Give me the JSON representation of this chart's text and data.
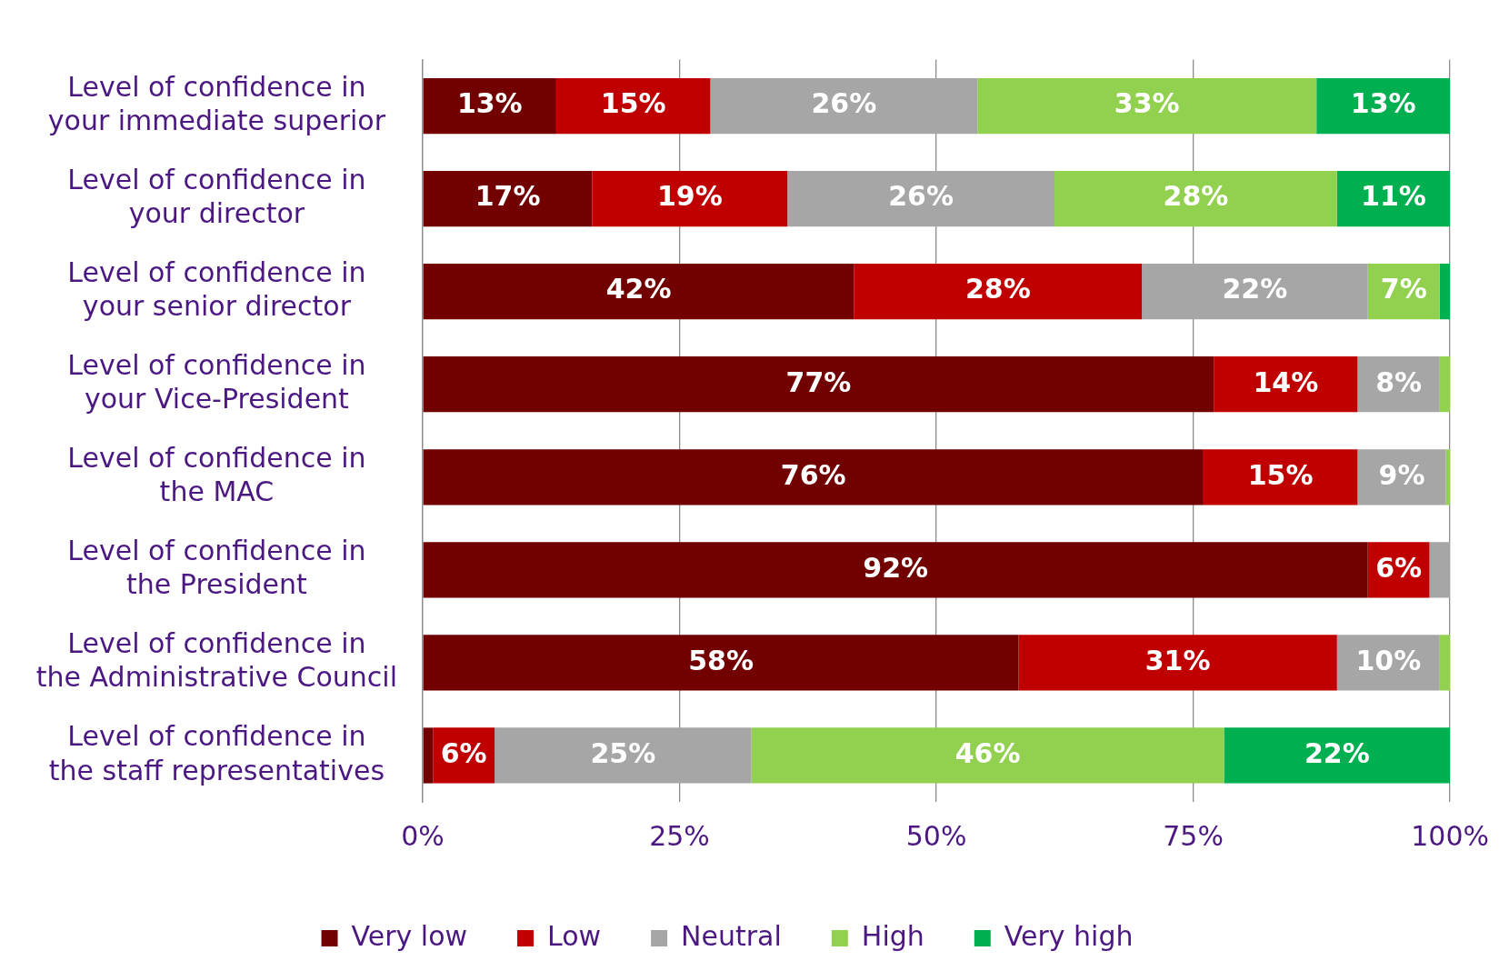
{
  "chart_data": {
    "type": "bar",
    "orientation": "horizontal",
    "stacked": true,
    "categories": [
      "Level of confidence in your immediate superior",
      "Level of confidence in your director",
      "Level of confidence in your senior director",
      "Level of confidence in your Vice-President",
      "Level of confidence in the MAC",
      "Level of confidence in the President",
      "Level of confidence in the Administrative Council",
      "Level of confidence in the staff representatives"
    ],
    "series": [
      {
        "name": "Very low",
        "color": "#720000",
        "values": [
          13,
          16.5,
          42,
          77,
          76,
          92,
          58,
          1
        ],
        "value_labels": [
          "13%",
          "17%",
          "42%",
          "77%",
          "76%",
          "92%",
          "58%",
          null
        ]
      },
      {
        "name": "Low",
        "color": "#c00000",
        "values": [
          15,
          19,
          28,
          14,
          15,
          6,
          31,
          6
        ],
        "value_labels": [
          "15%",
          "19%",
          "28%",
          "14%",
          "15%",
          "6%",
          "31%",
          "6%"
        ]
      },
      {
        "name": "Neutral",
        "color": "#a6a6a6",
        "values": [
          26,
          26,
          22,
          8,
          8.6,
          2,
          10,
          25
        ],
        "value_labels": [
          "26%",
          "26%",
          "22%",
          "8%",
          "9%",
          null,
          "10%",
          "25%"
        ]
      },
      {
        "name": "High",
        "color": "#92d050",
        "values": [
          33,
          27.5,
          7,
          1,
          0.4,
          0,
          1,
          46
        ],
        "value_labels": [
          "33%",
          "28%",
          "7%",
          null,
          null,
          null,
          null,
          "46%"
        ]
      },
      {
        "name": "Very high",
        "color": "#00b050",
        "values": [
          13,
          11,
          1,
          0,
          0,
          0,
          0,
          22
        ],
        "value_labels": [
          "13%",
          "11%",
          null,
          null,
          null,
          null,
          null,
          "22%"
        ]
      }
    ],
    "xlim": [
      0,
      100
    ],
    "xticks": [
      {
        "value": 0,
        "label": "0%"
      },
      {
        "value": 25,
        "label": "25%"
      },
      {
        "value": 50,
        "label": "50%"
      },
      {
        "value": 75,
        "label": "75%"
      },
      {
        "value": 100,
        "label": "100%"
      }
    ],
    "grid": "x",
    "legend": "bottom"
  }
}
